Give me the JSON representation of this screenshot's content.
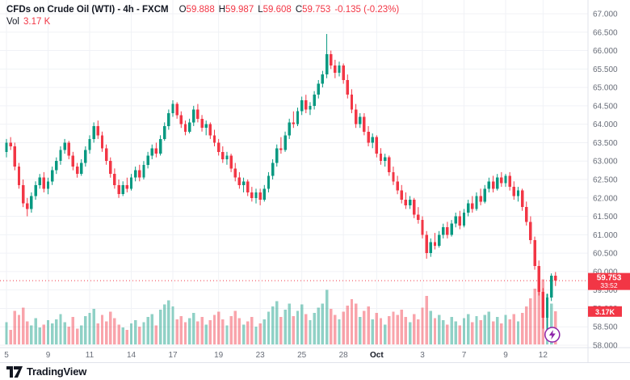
{
  "legend": {
    "symbol_title": "CFDs on Crude Oil (WTI) - 4h - FXCM",
    "ohlc": {
      "o_label": "O",
      "o": "59.888",
      "h_label": "H",
      "h": "59.987",
      "l_label": "L",
      "l": "59.608",
      "c_label": "C",
      "c": "59.753",
      "change": "-0.135 (-0.23%)"
    },
    "vol_label": "Vol",
    "vol_value": "3.17 K"
  },
  "price_axis": {
    "labels": [
      "67.000",
      "66.500",
      "66.000",
      "65.500",
      "65.000",
      "64.500",
      "64.000",
      "63.500",
      "63.000",
      "62.500",
      "62.000",
      "61.500",
      "61.000",
      "60.500",
      "60.000",
      "59.500",
      "59.000",
      "58.500",
      "58.000"
    ]
  },
  "price_line": {
    "value": 59.753,
    "label": "59.753",
    "countdown": "33:52"
  },
  "volume_badge": {
    "label": "3.17K"
  },
  "marker": {
    "name": "lightning-order-marker"
  },
  "footer": {
    "logo_text": "TradingView"
  },
  "colors": {
    "up": "#089981",
    "down": "#f23645",
    "badge": "#f23645",
    "axis_text": "#686d78",
    "grid": "#f0f2f6",
    "separator": "#e0e3eb",
    "marker_purple": "#8e24aa"
  },
  "chart_data": {
    "type": "candlestick",
    "title": "CFDs on Crude Oil (WTI) 4h FXCM",
    "ylim": [
      58,
      67
    ],
    "y_step": 0.5,
    "legend_position": "top-left",
    "grid": true,
    "x_ticks": [
      {
        "label": "5",
        "i": 0
      },
      {
        "label": "9",
        "i": 10
      },
      {
        "label": "11",
        "i": 20
      },
      {
        "label": "14",
        "i": 30
      },
      {
        "label": "17",
        "i": 40
      },
      {
        "label": "19",
        "i": 51
      },
      {
        "label": "23",
        "i": 61
      },
      {
        "label": "25",
        "i": 71
      },
      {
        "label": "28",
        "i": 81
      },
      {
        "label": "Oct",
        "i": 89
      },
      {
        "label": "3",
        "i": 100
      },
      {
        "label": "7",
        "i": 110
      },
      {
        "label": "9",
        "i": 120
      },
      {
        "label": "12",
        "i": 129
      }
    ],
    "last_price": 59.753,
    "last_volume_k": 3.17,
    "candles_ohlc": [
      [
        63.25,
        63.6,
        63.1,
        63.5
      ],
      [
        63.5,
        63.65,
        63.3,
        63.4
      ],
      [
        63.4,
        63.5,
        62.75,
        62.85
      ],
      [
        62.85,
        62.95,
        62.25,
        62.35
      ],
      [
        62.35,
        62.5,
        61.75,
        61.85
      ],
      [
        61.85,
        62.0,
        61.5,
        61.7
      ],
      [
        61.7,
        62.15,
        61.6,
        62.05
      ],
      [
        62.05,
        62.45,
        61.95,
        62.35
      ],
      [
        62.35,
        62.65,
        62.25,
        62.55
      ],
      [
        62.55,
        62.7,
        62.15,
        62.25
      ],
      [
        62.25,
        62.55,
        62.1,
        62.45
      ],
      [
        62.45,
        62.85,
        62.35,
        62.75
      ],
      [
        62.75,
        63.1,
        62.65,
        63.0
      ],
      [
        63.0,
        63.4,
        62.9,
        63.3
      ],
      [
        63.3,
        63.6,
        63.2,
        63.5
      ],
      [
        63.5,
        63.55,
        63.05,
        63.15
      ],
      [
        63.15,
        63.25,
        62.75,
        62.85
      ],
      [
        62.85,
        62.95,
        62.55,
        62.65
      ],
      [
        62.65,
        63.05,
        62.6,
        62.95
      ],
      [
        62.95,
        63.4,
        62.85,
        63.3
      ],
      [
        63.3,
        63.7,
        63.2,
        63.6
      ],
      [
        63.6,
        64.05,
        63.5,
        63.95
      ],
      [
        63.95,
        64.1,
        63.6,
        63.7
      ],
      [
        63.7,
        63.8,
        63.25,
        63.35
      ],
      [
        63.35,
        63.45,
        62.9,
        63.0
      ],
      [
        63.0,
        63.1,
        62.55,
        62.65
      ],
      [
        62.65,
        62.8,
        62.25,
        62.35
      ],
      [
        62.35,
        62.5,
        62.0,
        62.1
      ],
      [
        62.1,
        62.45,
        62.05,
        62.35
      ],
      [
        62.35,
        62.55,
        62.15,
        62.25
      ],
      [
        62.25,
        62.65,
        62.2,
        62.55
      ],
      [
        62.55,
        62.85,
        62.45,
        62.75
      ],
      [
        62.75,
        62.9,
        62.45,
        62.55
      ],
      [
        62.55,
        63.0,
        62.5,
        62.9
      ],
      [
        62.9,
        63.25,
        62.8,
        63.15
      ],
      [
        63.15,
        63.45,
        63.05,
        63.35
      ],
      [
        63.35,
        63.5,
        63.1,
        63.2
      ],
      [
        63.2,
        63.7,
        63.15,
        63.6
      ],
      [
        63.6,
        64.05,
        63.55,
        63.95
      ],
      [
        63.95,
        64.4,
        63.85,
        64.3
      ],
      [
        64.3,
        64.65,
        64.2,
        64.55
      ],
      [
        64.55,
        64.6,
        64.15,
        64.25
      ],
      [
        64.25,
        64.35,
        63.9,
        64.0
      ],
      [
        64.0,
        64.1,
        63.7,
        63.8
      ],
      [
        63.8,
        64.15,
        63.75,
        64.05
      ],
      [
        64.05,
        64.5,
        63.95,
        64.4
      ],
      [
        64.4,
        64.55,
        64.05,
        64.15
      ],
      [
        64.15,
        64.25,
        63.8,
        63.9
      ],
      [
        63.9,
        64.1,
        63.7,
        64.0
      ],
      [
        64.0,
        64.05,
        63.6,
        63.7
      ],
      [
        63.7,
        63.85,
        63.4,
        63.5
      ],
      [
        63.5,
        63.6,
        63.15,
        63.25
      ],
      [
        63.25,
        63.4,
        62.95,
        63.05
      ],
      [
        63.05,
        63.25,
        62.9,
        63.15
      ],
      [
        63.15,
        63.2,
        62.7,
        62.8
      ],
      [
        62.8,
        62.95,
        62.45,
        62.55
      ],
      [
        62.55,
        62.7,
        62.25,
        62.35
      ],
      [
        62.35,
        62.55,
        62.15,
        62.45
      ],
      [
        62.45,
        62.5,
        62.05,
        62.15
      ],
      [
        62.15,
        62.3,
        61.9,
        62.0
      ],
      [
        62.0,
        62.25,
        61.85,
        62.15
      ],
      [
        62.15,
        62.25,
        61.8,
        61.95
      ],
      [
        61.95,
        62.35,
        61.9,
        62.25
      ],
      [
        62.25,
        62.7,
        62.15,
        62.6
      ],
      [
        62.6,
        63.05,
        62.5,
        62.95
      ],
      [
        62.95,
        63.45,
        62.85,
        63.35
      ],
      [
        63.35,
        63.65,
        63.2,
        63.3
      ],
      [
        63.3,
        63.8,
        63.25,
        63.7
      ],
      [
        63.7,
        64.15,
        63.6,
        64.05
      ],
      [
        64.05,
        64.35,
        63.9,
        64.0
      ],
      [
        64.0,
        64.45,
        63.95,
        64.35
      ],
      [
        64.35,
        64.75,
        64.25,
        64.65
      ],
      [
        64.65,
        64.8,
        64.3,
        64.4
      ],
      [
        64.4,
        64.6,
        64.25,
        64.5
      ],
      [
        64.5,
        64.9,
        64.4,
        64.8
      ],
      [
        64.8,
        65.2,
        64.7,
        65.1
      ],
      [
        65.1,
        65.45,
        65.0,
        65.35
      ],
      [
        65.35,
        66.45,
        65.25,
        65.9
      ],
      [
        65.9,
        66.0,
        65.5,
        65.6
      ],
      [
        65.6,
        65.75,
        65.25,
        65.4
      ],
      [
        65.4,
        65.7,
        65.3,
        65.6
      ],
      [
        65.6,
        65.65,
        65.1,
        65.2
      ],
      [
        65.2,
        65.35,
        64.7,
        64.8
      ],
      [
        64.8,
        64.95,
        64.3,
        64.4
      ],
      [
        64.4,
        64.55,
        63.9,
        64.0
      ],
      [
        64.0,
        64.3,
        63.9,
        64.2
      ],
      [
        64.2,
        64.3,
        63.7,
        63.8
      ],
      [
        63.8,
        63.95,
        63.4,
        63.5
      ],
      [
        63.5,
        63.75,
        63.35,
        63.65
      ],
      [
        63.65,
        63.7,
        63.1,
        63.2
      ],
      [
        63.2,
        63.35,
        62.9,
        63.0
      ],
      [
        63.0,
        63.2,
        62.85,
        63.1
      ],
      [
        63.1,
        63.15,
        62.6,
        62.7
      ],
      [
        62.7,
        62.85,
        62.35,
        62.45
      ],
      [
        62.45,
        62.6,
        62.1,
        62.2
      ],
      [
        62.2,
        62.35,
        61.85,
        61.95
      ],
      [
        61.95,
        62.15,
        61.7,
        61.8
      ],
      [
        61.8,
        62.05,
        61.7,
        61.95
      ],
      [
        61.95,
        62.0,
        61.45,
        61.55
      ],
      [
        61.55,
        61.75,
        61.3,
        61.4
      ],
      [
        61.4,
        61.5,
        60.9,
        61.0
      ],
      [
        61.0,
        61.1,
        60.35,
        60.5
      ],
      [
        60.5,
        60.9,
        60.4,
        60.8
      ],
      [
        60.8,
        61.05,
        60.6,
        60.7
      ],
      [
        60.7,
        61.1,
        60.65,
        61.0
      ],
      [
        61.0,
        61.3,
        60.9,
        61.2
      ],
      [
        61.2,
        61.35,
        60.9,
        61.0
      ],
      [
        61.0,
        61.4,
        60.95,
        61.3
      ],
      [
        61.3,
        61.6,
        61.2,
        61.5
      ],
      [
        61.5,
        61.65,
        61.15,
        61.25
      ],
      [
        61.25,
        61.7,
        61.2,
        61.6
      ],
      [
        61.6,
        61.95,
        61.5,
        61.85
      ],
      [
        61.85,
        62.05,
        61.6,
        61.7
      ],
      [
        61.7,
        62.15,
        61.65,
        62.05
      ],
      [
        62.05,
        62.25,
        61.8,
        61.9
      ],
      [
        61.9,
        62.35,
        61.85,
        62.25
      ],
      [
        62.25,
        62.55,
        62.15,
        62.45
      ],
      [
        62.45,
        62.6,
        62.15,
        62.25
      ],
      [
        62.25,
        62.65,
        62.2,
        62.55
      ],
      [
        62.55,
        62.7,
        62.3,
        62.4
      ],
      [
        62.4,
        62.65,
        62.3,
        62.6
      ],
      [
        62.6,
        62.7,
        62.2,
        62.3
      ],
      [
        62.3,
        62.45,
        61.95,
        62.05
      ],
      [
        62.05,
        62.3,
        61.9,
        62.2
      ],
      [
        62.2,
        62.25,
        61.65,
        61.75
      ],
      [
        61.75,
        61.9,
        61.25,
        61.35
      ],
      [
        61.35,
        61.5,
        60.75,
        60.85
      ],
      [
        60.85,
        60.95,
        60.05,
        60.15
      ],
      [
        60.15,
        60.3,
        59.35,
        59.45
      ],
      [
        59.45,
        59.55,
        58.45,
        58.75
      ],
      [
        58.75,
        59.4,
        58.4,
        59.3
      ],
      [
        59.3,
        59.95,
        59.2,
        59.89
      ],
      [
        59.888,
        59.987,
        59.608,
        59.753
      ]
    ],
    "volumes_k": [
      2.1,
      1.4,
      3.2,
      2.8,
      3.5,
      2.2,
      1.8,
      2.5,
      1.6,
      1.9,
      2.3,
      2.0,
      2.4,
      2.9,
      2.1,
      1.7,
      2.6,
      1.5,
      1.8,
      2.7,
      3.0,
      3.4,
      2.0,
      2.8,
      2.2,
      3.1,
      2.5,
      1.9,
      1.6,
      1.4,
      2.0,
      2.3,
      1.7,
      2.1,
      2.6,
      2.9,
      1.8,
      3.3,
      3.8,
      4.2,
      3.6,
      2.4,
      2.7,
      2.1,
      2.5,
      3.0,
      2.2,
      2.6,
      1.9,
      2.3,
      2.8,
      3.1,
      2.4,
      1.8,
      2.7,
      3.2,
      2.5,
      1.9,
      2.2,
      2.6,
      1.7,
      2.0,
      2.4,
      3.1,
      3.6,
      4.1,
      2.6,
      3.3,
      3.9,
      2.7,
      3.2,
      3.8,
      2.9,
      2.3,
      3.0,
      3.5,
      3.9,
      5.2,
      3.4,
      2.8,
      2.4,
      3.1,
      3.7,
      4.3,
      3.9,
      2.6,
      3.2,
      3.6,
      2.4,
      3.0,
      2.5,
      1.9,
      2.7,
      3.1,
      2.8,
      3.3,
      2.6,
      2.1,
      2.9,
      2.4,
      3.5,
      4.6,
      3.2,
      2.5,
      2.8,
      2.3,
      1.9,
      2.6,
      2.2,
      1.8,
      2.5,
      2.9,
      2.1,
      2.7,
      2.3,
      2.8,
      3.1,
      2.2,
      2.6,
      2.0,
      2.8,
      2.4,
      2.9,
      2.2,
      3.0,
      3.6,
      4.4,
      5.3,
      5.8,
      6.2,
      4.8,
      3.9,
      3.17
    ]
  }
}
